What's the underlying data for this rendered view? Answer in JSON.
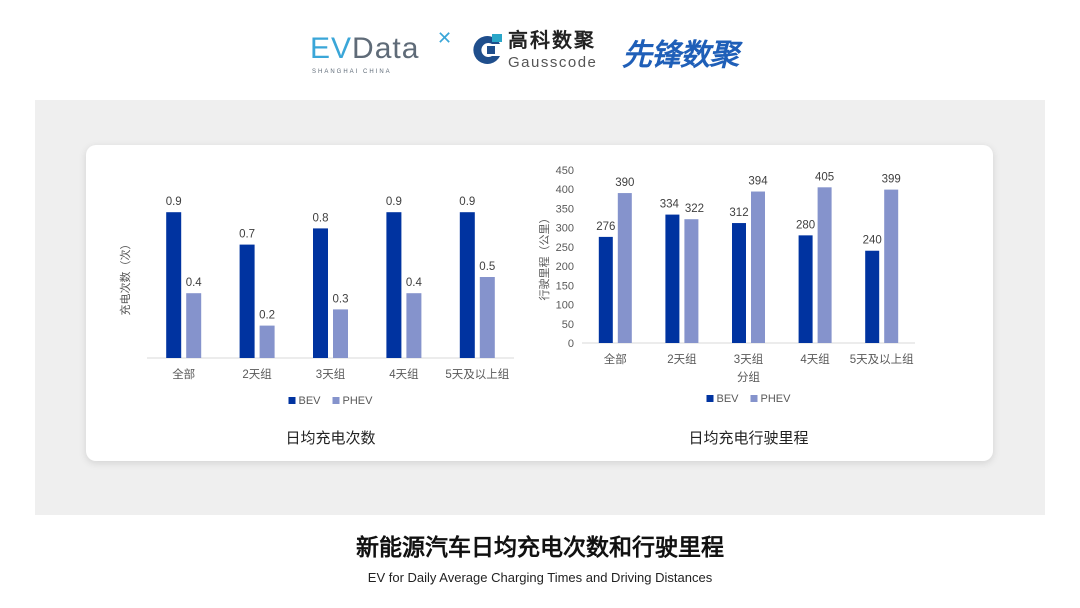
{
  "logos": {
    "evdata": {
      "ev": "EV",
      "rest": "Data",
      "sub": "SHANGHAI CHINA"
    },
    "gauss": {
      "cn": "高科数聚",
      "en": "Gausscode"
    },
    "xianfeng": "先锋数聚"
  },
  "title": "新能源汽车日均充电次数和行驶里程",
  "subtitle": "EV for Daily Average Charging Times and Driving Distances",
  "colors": {
    "BEV": "#0033a0",
    "PHEV": "#8593cc",
    "panel": "#efefef"
  },
  "chart_data": [
    {
      "type": "bar",
      "title": "日均充电次数",
      "ylabel": "充电次数（次）",
      "xlabel": "",
      "categories": [
        "全部",
        "2天组",
        "3天组",
        "4天组",
        "5天及以上组"
      ],
      "series": [
        {
          "name": "BEV",
          "values": [
            0.9,
            0.7,
            0.8,
            0.9,
            0.9
          ]
        },
        {
          "name": "PHEV",
          "values": [
            0.4,
            0.2,
            0.3,
            0.4,
            0.5
          ]
        }
      ],
      "ylim": [
        0,
        1.0
      ],
      "y_axis_shown": false,
      "grid": false,
      "legend": "bottom"
    },
    {
      "type": "bar",
      "title": "日均充电行驶里程",
      "ylabel": "行驶里程（公里）",
      "xlabel": "分组",
      "categories": [
        "全部",
        "2天组",
        "3天组",
        "4天组",
        "5天及以上组"
      ],
      "series": [
        {
          "name": "BEV",
          "values": [
            276,
            334,
            312,
            280,
            240
          ]
        },
        {
          "name": "PHEV",
          "values": [
            390,
            322,
            394,
            405,
            399
          ]
        }
      ],
      "ylim": [
        0,
        450
      ],
      "yticks": [
        0,
        50,
        100,
        150,
        200,
        250,
        300,
        350,
        400,
        450
      ],
      "grid": false,
      "legend": "bottom"
    }
  ]
}
